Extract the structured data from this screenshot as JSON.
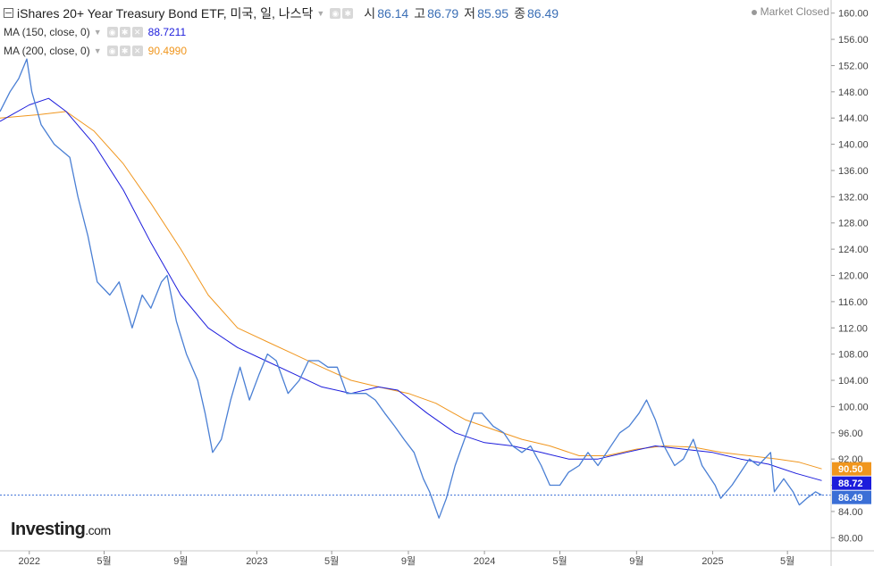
{
  "header": {
    "title": "iShares 20+ Year Treasury Bond ETF, 미국, 일, 나스닥",
    "open_label": "시",
    "open": "86.14",
    "high_label": "고",
    "high": "86.79",
    "low_label": "저",
    "low": "85.95",
    "close_label": "종",
    "close": "86.49",
    "market_status": "Market Closed"
  },
  "indicators": [
    {
      "label": "MA (150, close, 0)",
      "value": "88.7211",
      "color": "#1c1cdc"
    },
    {
      "label": "MA (200, close, 0)",
      "value": "90.4990",
      "color": "#f0961e"
    }
  ],
  "logo": {
    "name": "Investing",
    "suffix": ".com"
  },
  "chart_data": {
    "type": "line",
    "y_axis": {
      "position": "right",
      "min": 78,
      "max": 162,
      "ticks": [
        "80.00",
        "84.00",
        "88.00",
        "92.00",
        "96.00",
        "100.00",
        "104.00",
        "108.00",
        "112.00",
        "116.00",
        "120.00",
        "124.00",
        "128.00",
        "132.00",
        "136.00",
        "140.00",
        "144.00",
        "148.00",
        "152.00",
        "156.00",
        "160.00"
      ]
    },
    "x_axis": {
      "labels": [
        "2022",
        "5월",
        "9월",
        "2023",
        "5월",
        "9월",
        "2024",
        "5월",
        "9월",
        "2025",
        "5월"
      ],
      "label_dates": [
        "2022-01-01",
        "2022-05-01",
        "2022-09-01",
        "2023-01-01",
        "2023-05-01",
        "2023-09-01",
        "2024-01-01",
        "2024-05-01",
        "2024-09-01",
        "2025-01-01",
        "2025-05-01"
      ]
    },
    "price_labels": [
      {
        "value": 90.5,
        "text": "90.50",
        "color": "#f0961e"
      },
      {
        "value": 88.72,
        "text": "88.72",
        "color": "#1c1cdc"
      },
      {
        "value": 86.49,
        "text": "86.49",
        "color": "#3b6fd6"
      }
    ],
    "series": [
      {
        "name": "Price",
        "color": "#4a7fd4",
        "points": [
          [
            "2021-11-15",
            145
          ],
          [
            "2021-12-01",
            148
          ],
          [
            "2021-12-15",
            150
          ],
          [
            "2021-12-28",
            153
          ],
          [
            "2022-01-05",
            148
          ],
          [
            "2022-01-20",
            143
          ],
          [
            "2022-02-10",
            140
          ],
          [
            "2022-03-07",
            138
          ],
          [
            "2022-03-20",
            132
          ],
          [
            "2022-04-05",
            126
          ],
          [
            "2022-04-20",
            119
          ],
          [
            "2022-05-10",
            117
          ],
          [
            "2022-05-25",
            119
          ],
          [
            "2022-06-15",
            112
          ],
          [
            "2022-07-01",
            117
          ],
          [
            "2022-07-15",
            115
          ],
          [
            "2022-08-01",
            119
          ],
          [
            "2022-08-10",
            120
          ],
          [
            "2022-08-25",
            113
          ],
          [
            "2022-09-10",
            108
          ],
          [
            "2022-09-28",
            104
          ],
          [
            "2022-10-10",
            99
          ],
          [
            "2022-10-22",
            93
          ],
          [
            "2022-11-05",
            95
          ],
          [
            "2022-11-20",
            101
          ],
          [
            "2022-12-05",
            106
          ],
          [
            "2022-12-20",
            101
          ],
          [
            "2023-01-05",
            105
          ],
          [
            "2023-01-18",
            108
          ],
          [
            "2023-02-01",
            107
          ],
          [
            "2023-02-20",
            102
          ],
          [
            "2023-03-10",
            104
          ],
          [
            "2023-03-25",
            107
          ],
          [
            "2023-04-10",
            107
          ],
          [
            "2023-04-25",
            106
          ],
          [
            "2023-05-10",
            106
          ],
          [
            "2023-05-25",
            102
          ],
          [
            "2023-06-10",
            102
          ],
          [
            "2023-06-25",
            102
          ],
          [
            "2023-07-10",
            101
          ],
          [
            "2023-07-25",
            99
          ],
          [
            "2023-08-10",
            97
          ],
          [
            "2023-08-25",
            95
          ],
          [
            "2023-09-10",
            93
          ],
          [
            "2023-09-25",
            89
          ],
          [
            "2023-10-05",
            87
          ],
          [
            "2023-10-20",
            83
          ],
          [
            "2023-11-01",
            86
          ],
          [
            "2023-11-15",
            91
          ],
          [
            "2023-11-30",
            95
          ],
          [
            "2023-12-15",
            99
          ],
          [
            "2023-12-28",
            99
          ],
          [
            "2024-01-15",
            97
          ],
          [
            "2024-02-01",
            96
          ],
          [
            "2024-02-15",
            94
          ],
          [
            "2024-03-01",
            93
          ],
          [
            "2024-03-15",
            94
          ],
          [
            "2024-04-01",
            91
          ],
          [
            "2024-04-15",
            88
          ],
          [
            "2024-05-01",
            88
          ],
          [
            "2024-05-15",
            90
          ],
          [
            "2024-06-01",
            91
          ],
          [
            "2024-06-15",
            93
          ],
          [
            "2024-07-01",
            91
          ],
          [
            "2024-07-15",
            93
          ],
          [
            "2024-08-05",
            96
          ],
          [
            "2024-08-20",
            97
          ],
          [
            "2024-09-05",
            99
          ],
          [
            "2024-09-17",
            101
          ],
          [
            "2024-10-01",
            98
          ],
          [
            "2024-10-15",
            94
          ],
          [
            "2024-11-01",
            91
          ],
          [
            "2024-11-15",
            92
          ],
          [
            "2024-12-01",
            95
          ],
          [
            "2024-12-15",
            91
          ],
          [
            "2025-01-05",
            88
          ],
          [
            "2025-01-14",
            86
          ],
          [
            "2025-02-01",
            88
          ],
          [
            "2025-02-15",
            90
          ],
          [
            "2025-03-01",
            92
          ],
          [
            "2025-03-15",
            91
          ],
          [
            "2025-04-04",
            93
          ],
          [
            "2025-04-10",
            87
          ],
          [
            "2025-04-25",
            89
          ],
          [
            "2025-05-10",
            87
          ],
          [
            "2025-05-20",
            85
          ],
          [
            "2025-06-01",
            86
          ],
          [
            "2025-06-15",
            87
          ],
          [
            "2025-06-25",
            86.49
          ]
        ]
      },
      {
        "name": "MA (150, close, 0)",
        "color": "#1c1cdc",
        "points": [
          [
            "2021-11-15",
            143.5
          ],
          [
            "2022-01-01",
            146
          ],
          [
            "2022-02-01",
            147
          ],
          [
            "2022-03-01",
            145
          ],
          [
            "2022-04-15",
            140
          ],
          [
            "2022-06-01",
            133
          ],
          [
            "2022-07-15",
            125
          ],
          [
            "2022-09-01",
            117
          ],
          [
            "2022-10-15",
            112
          ],
          [
            "2022-12-01",
            109
          ],
          [
            "2023-01-15",
            107
          ],
          [
            "2023-03-01",
            105
          ],
          [
            "2023-04-15",
            103
          ],
          [
            "2023-06-01",
            102
          ],
          [
            "2023-07-15",
            103
          ],
          [
            "2023-08-15",
            102.5
          ],
          [
            "2023-10-01",
            99
          ],
          [
            "2023-11-15",
            96
          ],
          [
            "2024-01-01",
            94.5
          ],
          [
            "2024-02-15",
            94
          ],
          [
            "2024-04-01",
            93
          ],
          [
            "2024-05-15",
            92
          ],
          [
            "2024-07-01",
            92
          ],
          [
            "2024-08-15",
            93
          ],
          [
            "2024-10-01",
            94
          ],
          [
            "2024-11-15",
            93.5
          ],
          [
            "2025-01-01",
            93
          ],
          [
            "2025-02-15",
            92
          ],
          [
            "2025-04-01",
            91.2
          ],
          [
            "2025-05-15",
            89.8
          ],
          [
            "2025-06-25",
            88.72
          ]
        ]
      },
      {
        "name": "MA (200, close, 0)",
        "color": "#f0961e",
        "points": [
          [
            "2021-11-15",
            144
          ],
          [
            "2022-01-15",
            144.5
          ],
          [
            "2022-03-01",
            145
          ],
          [
            "2022-04-15",
            142
          ],
          [
            "2022-06-01",
            137
          ],
          [
            "2022-07-15",
            131
          ],
          [
            "2022-09-01",
            124
          ],
          [
            "2022-10-15",
            117
          ],
          [
            "2022-12-01",
            112
          ],
          [
            "2023-01-15",
            110
          ],
          [
            "2023-03-01",
            108
          ],
          [
            "2023-04-15",
            106
          ],
          [
            "2023-06-01",
            104
          ],
          [
            "2023-07-15",
            103
          ],
          [
            "2023-09-01",
            102
          ],
          [
            "2023-10-15",
            100.5
          ],
          [
            "2023-12-01",
            98
          ],
          [
            "2024-01-15",
            96.5
          ],
          [
            "2024-03-01",
            95
          ],
          [
            "2024-04-15",
            94
          ],
          [
            "2024-06-01",
            92.5
          ],
          [
            "2024-07-15",
            92.5
          ],
          [
            "2024-09-01",
            93.5
          ],
          [
            "2024-10-15",
            94
          ],
          [
            "2024-12-01",
            93.8
          ],
          [
            "2025-01-15",
            93
          ],
          [
            "2025-03-01",
            92.5
          ],
          [
            "2025-04-15",
            92
          ],
          [
            "2025-05-20",
            91.5
          ],
          [
            "2025-06-25",
            90.5
          ]
        ]
      }
    ]
  }
}
